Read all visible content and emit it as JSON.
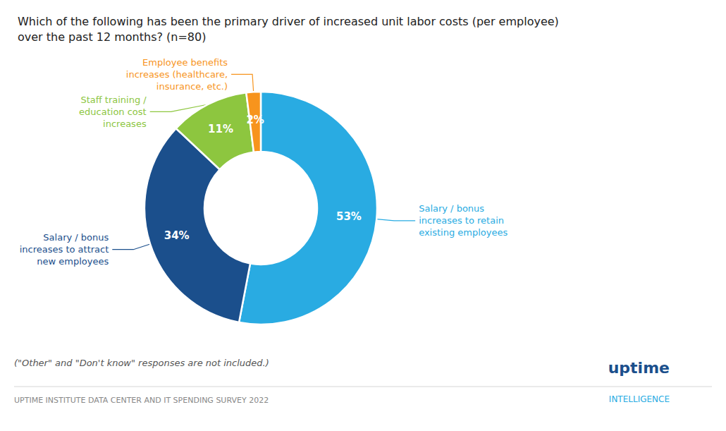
{
  "chart_data": {
    "type": "pie",
    "title": "Which of the following has been the primary driver of increased unit labor costs (per employee)\nover the past 12 months? (n=80)",
    "categories": [
      "Salary / bonus\nincreases to retain\nexisting employees",
      "Salary / bonus\nincreases to attract\nnew employees",
      "Staff training /\neducation cost\nincreases",
      "Employee benefits\nincreases (healthcare,\ninsurance, etc.)"
    ],
    "values": [
      53,
      34,
      11,
      2
    ],
    "value_labels": [
      "53%",
      "34%",
      "11%",
      "2%"
    ],
    "colors": [
      "#29ABE2",
      "#1B4F8C",
      "#8DC63F",
      "#F7941D"
    ],
    "data_labels": true,
    "annotations": [
      "(\"Other\" and \"Don't know\" responses are not included.)",
      "UPTIME INSTITUTE DATA CENTER AND IT SPENDING SURVEY 2022",
      "uptime",
      "INTELLIGENCE"
    ]
  }
}
